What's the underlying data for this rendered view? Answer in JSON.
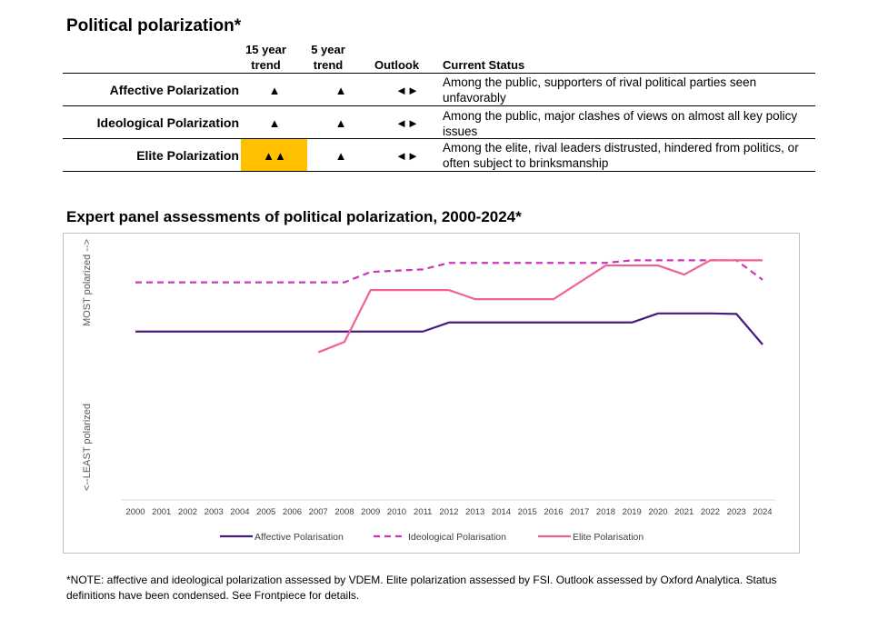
{
  "table": {
    "title": "Political polarization*",
    "headers": {
      "trend15_line1": "15 year",
      "trend15_line2": "trend",
      "trend5_line1": "5 year",
      "trend5_line2": "trend",
      "outlook": "Outlook",
      "status": "Current Status"
    },
    "rows": [
      {
        "label": "Affective Polarization",
        "trend15": "▲",
        "trend5": "▲",
        "outlook": "◄►",
        "status": "Among the public, supporters of rival political parties seen unfavorably",
        "highlight": false
      },
      {
        "label": "Ideological Polarization",
        "trend15": "▲",
        "trend5": "▲",
        "outlook": "◄►",
        "status": "Among the public, major clashes of views on almost all key policy issues",
        "highlight": false
      },
      {
        "label": "Elite Polarization",
        "trend15": "▲▲",
        "trend5": "▲",
        "outlook": "◄►",
        "status": "Among the elite, rival leaders distrusted, hindered from politics, or often subject to brinksmanship",
        "highlight": true
      }
    ],
    "highlight_color": "#FFC000"
  },
  "chart_data": {
    "type": "line",
    "title": "Expert panel assessments of political polarization, 2000-2024*",
    "ylabel_top": "MOST polarized -->",
    "ylabel_bottom": "<--LEAST polarized",
    "x": [
      "2000",
      "2001",
      "2002",
      "2003",
      "2004",
      "2005",
      "2006",
      "2007",
      "2008",
      "2009",
      "2010",
      "2011",
      "2012",
      "2013",
      "2014",
      "2015",
      "2016",
      "2017",
      "2018",
      "2019",
      "2020",
      "2021",
      "2022",
      "2023",
      "2024"
    ],
    "ylim": [
      0,
      100
    ],
    "grid": false,
    "legend": "bottom",
    "series": [
      {
        "name": "Affective Polarisation",
        "style": "solid",
        "color": "#4B1A7F",
        "values": [
          65,
          65,
          65,
          65,
          65,
          65,
          65,
          65,
          65,
          65,
          65,
          65,
          68.5,
          68.5,
          68.5,
          68.5,
          68.5,
          68.5,
          68.5,
          68.5,
          72,
          72,
          72,
          71.8,
          60
        ]
      },
      {
        "name": "Ideological Polarisation",
        "style": "dashed",
        "color": "#C936B8",
        "values": [
          84,
          84,
          84,
          84,
          84,
          84,
          84,
          84,
          84,
          88,
          88.5,
          89,
          91.5,
          91.5,
          91.5,
          91.5,
          91.5,
          91.5,
          91.5,
          92.5,
          92.5,
          92.5,
          92.5,
          92.5,
          85
        ]
      },
      {
        "name": "Elite Polarisation",
        "style": "solid",
        "color": "#F06292",
        "values": [
          null,
          null,
          null,
          null,
          null,
          null,
          null,
          57,
          61,
          81,
          81,
          81,
          81,
          77.5,
          77.5,
          77.5,
          77.5,
          84,
          90.5,
          90.5,
          90.5,
          87,
          92.5,
          92.5,
          92.5
        ]
      }
    ]
  },
  "note": "*NOTE: affective and ideological polarization assessed by VDEM. Elite polarization assessed by FSI. Outlook assessed by Oxford Analytica. Status definitions have been condensed. See Frontpiece for details."
}
